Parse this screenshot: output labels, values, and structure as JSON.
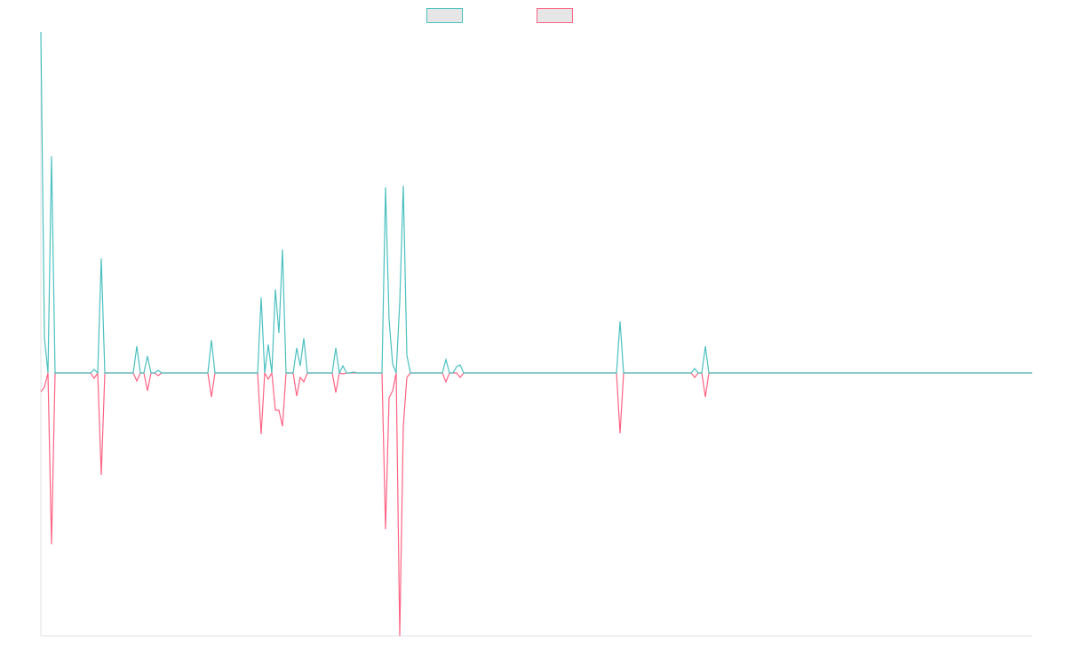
{
  "chart_data": {
    "type": "line",
    "series": [
      {
        "color": "#4bc0c0",
        "values": [
          384,
          40,
          0,
          244,
          0,
          0,
          0,
          0,
          0,
          0,
          0,
          0,
          0,
          0,
          0,
          4,
          0,
          129,
          0,
          0,
          0,
          0,
          0,
          0,
          0,
          0,
          0,
          30,
          0,
          0,
          19,
          0,
          0,
          3,
          0,
          0,
          0,
          0,
          0,
          0,
          0,
          0,
          0,
          0,
          0,
          0,
          0,
          0,
          37,
          0,
          0,
          0,
          0,
          0,
          0,
          0,
          0,
          0,
          0,
          0,
          0,
          0,
          85,
          0,
          32,
          0,
          94,
          45,
          139,
          0,
          0,
          0,
          28,
          8,
          39,
          0,
          0,
          0,
          0,
          0,
          0,
          0,
          0,
          28,
          0,
          8,
          0,
          0,
          1,
          0,
          0,
          0,
          0,
          0,
          0,
          0,
          0,
          209,
          60,
          10,
          0,
          80,
          211,
          20,
          0,
          0,
          0,
          0,
          0,
          0,
          0,
          0,
          0,
          0,
          15,
          0,
          0,
          7,
          9,
          0,
          0,
          0,
          0,
          0,
          0,
          0,
          0,
          0,
          0,
          0,
          0,
          0,
          0,
          0,
          0,
          0,
          0,
          0,
          0,
          0,
          0,
          0,
          0,
          0,
          0,
          0,
          0,
          0,
          0,
          0,
          0,
          0,
          0,
          0,
          0,
          0,
          0,
          0,
          0,
          0,
          0,
          0,
          0,
          58,
          0,
          0,
          0,
          0,
          0,
          0,
          0,
          0,
          0,
          0,
          0,
          0,
          0,
          0,
          0,
          0,
          0,
          0,
          0,
          0,
          5,
          0,
          0,
          30,
          0,
          0,
          0,
          0,
          0,
          0,
          0,
          0,
          0,
          0,
          0,
          0,
          0,
          0,
          0,
          0,
          0,
          0,
          0,
          0,
          0,
          0,
          0,
          0,
          0,
          0,
          0,
          0,
          0,
          0,
          0,
          0,
          0,
          0,
          0,
          0,
          0,
          0,
          0,
          0,
          0,
          0,
          0,
          0,
          0,
          0,
          0,
          0,
          0,
          0,
          0,
          0,
          0,
          0,
          0,
          0,
          0,
          0,
          0,
          0,
          0,
          0,
          0,
          0,
          0,
          0,
          0,
          0,
          0,
          0,
          0,
          0,
          0,
          0,
          0,
          0,
          0,
          0,
          0,
          0,
          0,
          0,
          0,
          0,
          0,
          0,
          0,
          0,
          0,
          0,
          0,
          0
        ]
      },
      {
        "color": "#ff6384",
        "values": [
          -21,
          -16,
          0,
          -193,
          0,
          0,
          0,
          0,
          0,
          0,
          0,
          0,
          0,
          0,
          0,
          -6,
          0,
          -115,
          0,
          0,
          0,
          0,
          0,
          0,
          0,
          0,
          0,
          -9,
          0,
          0,
          -20,
          0,
          0,
          -3,
          0,
          0,
          0,
          0,
          0,
          0,
          0,
          0,
          0,
          0,
          0,
          0,
          0,
          0,
          -27,
          0,
          0,
          0,
          0,
          0,
          0,
          0,
          0,
          0,
          0,
          0,
          0,
          0,
          -69,
          0,
          -7,
          0,
          -42,
          -42,
          -60,
          0,
          0,
          0,
          -26,
          -5,
          -10,
          0,
          0,
          0,
          0,
          0,
          0,
          0,
          0,
          -22,
          0,
          -1,
          0,
          0,
          0,
          0,
          0,
          0,
          0,
          0,
          0,
          0,
          0,
          -176,
          -28,
          -20,
          0,
          -296,
          -60,
          -5,
          0,
          0,
          0,
          0,
          0,
          0,
          0,
          0,
          0,
          0,
          -10,
          0,
          0,
          0,
          -5,
          0,
          0,
          0,
          0,
          0,
          0,
          0,
          0,
          0,
          0,
          0,
          0,
          0,
          0,
          0,
          0,
          0,
          0,
          0,
          0,
          0,
          0,
          0,
          0,
          0,
          0,
          0,
          0,
          0,
          0,
          0,
          0,
          0,
          0,
          0,
          0,
          0,
          0,
          0,
          0,
          0,
          0,
          0,
          0,
          -68,
          0,
          0,
          0,
          0,
          0,
          0,
          0,
          0,
          0,
          0,
          0,
          0,
          0,
          0,
          0,
          0,
          0,
          0,
          0,
          0,
          -5,
          0,
          0,
          -27,
          0,
          0,
          0,
          0,
          0,
          0,
          0,
          0,
          0,
          0,
          0,
          0,
          0,
          0,
          0,
          0,
          0,
          0,
          0,
          0,
          0,
          0,
          0,
          0,
          0,
          0,
          0,
          0,
          0,
          0,
          0,
          0,
          0,
          0,
          0,
          0,
          0,
          0,
          0,
          0,
          0,
          0,
          0,
          0,
          0,
          0,
          0,
          0,
          0,
          0,
          0,
          0,
          0,
          0,
          0,
          0,
          0,
          0,
          0,
          0,
          0,
          0,
          0,
          0,
          0,
          0,
          0,
          0,
          0,
          0,
          0,
          0,
          0,
          0,
          0,
          0,
          0,
          0,
          0,
          0,
          0,
          0,
          0,
          0,
          0,
          0,
          0,
          0,
          0,
          0,
          0,
          0
        ]
      }
    ],
    "ylim": [
      -296,
      384
    ]
  }
}
